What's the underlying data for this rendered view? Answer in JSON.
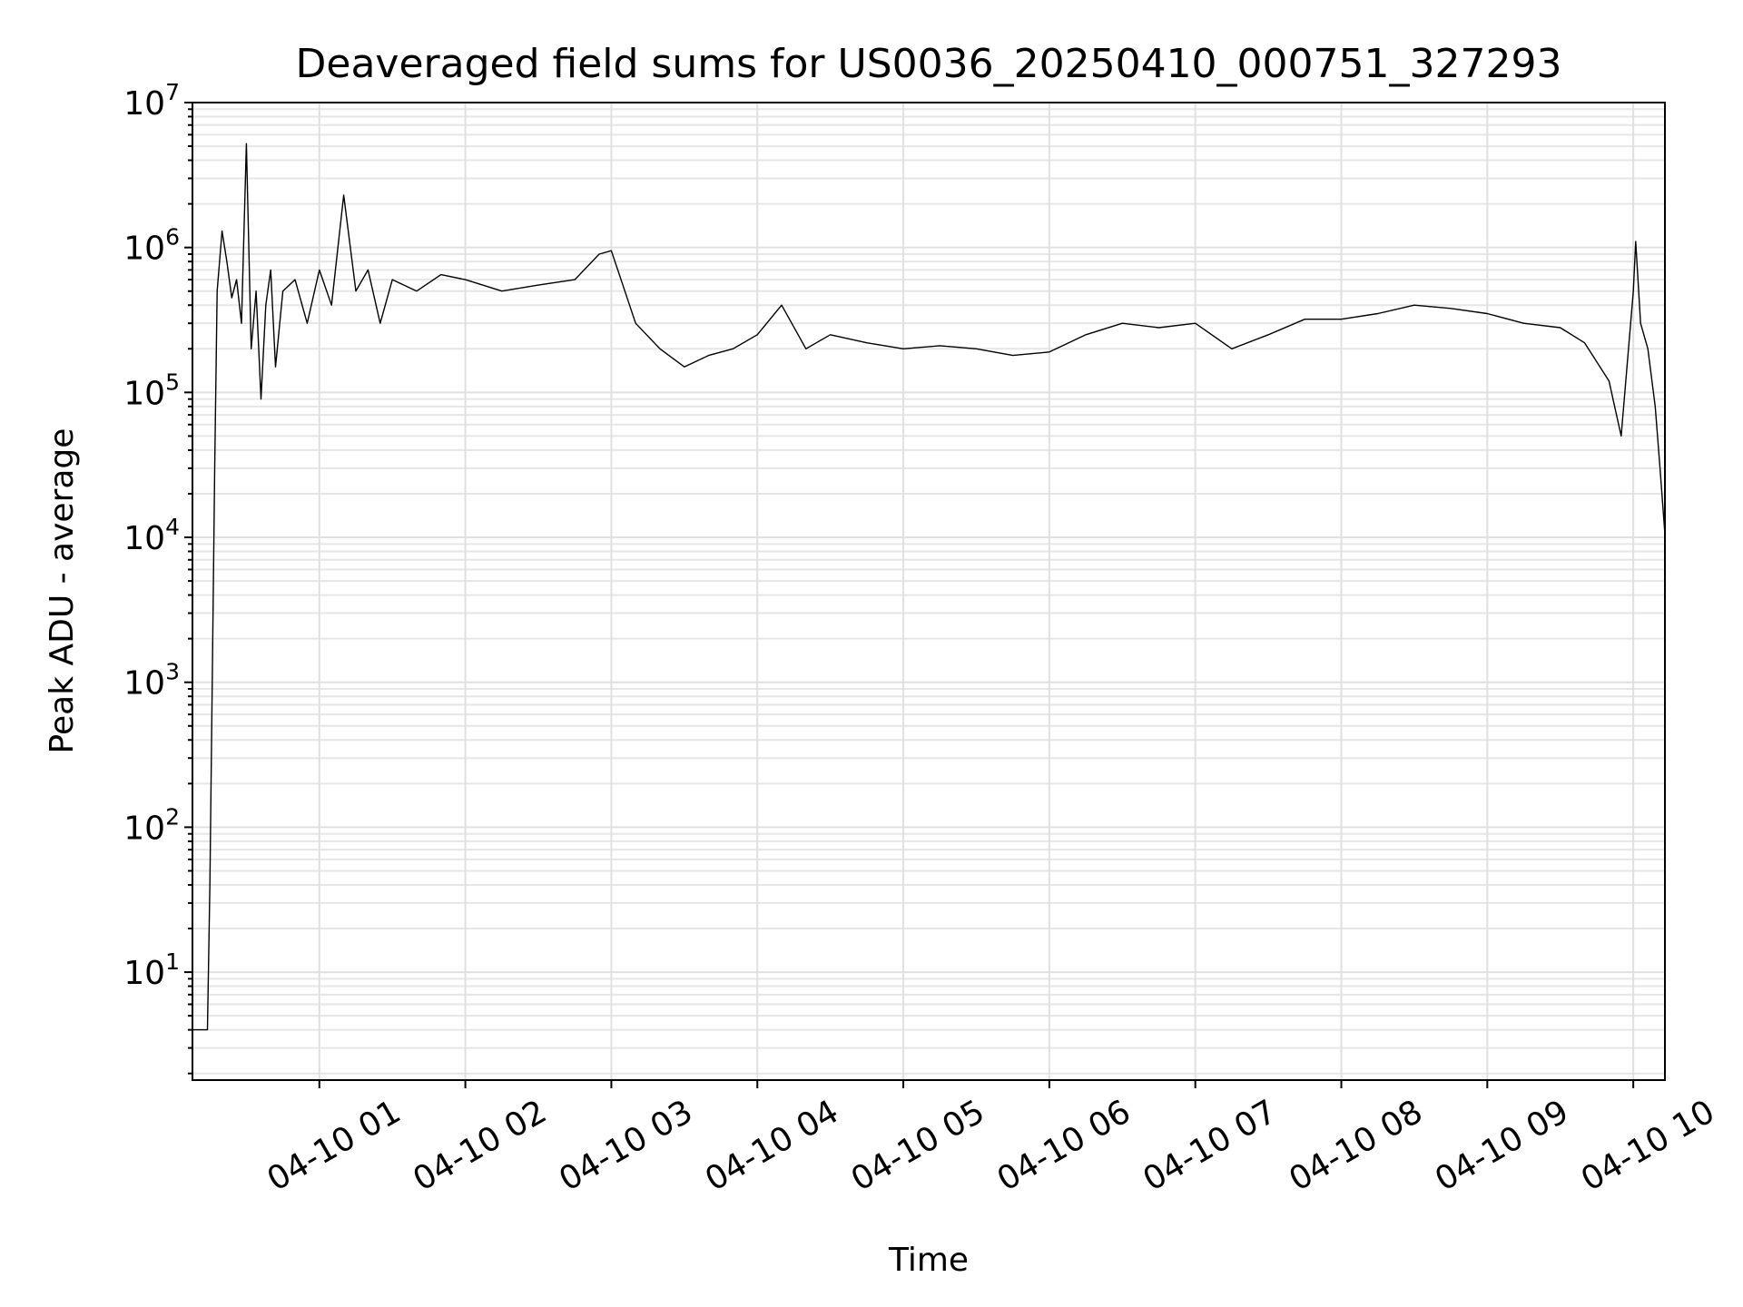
{
  "chart_data": {
    "type": "line",
    "title": "Deaveraged field sums for US0036_20250410_000751_327293",
    "xlabel": "Time",
    "ylabel": "Peak ADU - average",
    "yscale": "log",
    "ylim": [
      1.8,
      10000000
    ],
    "xlim": [
      "2025-04-10T00:07:51",
      "2025-04-10T10:13:00"
    ],
    "grid": "on, major and minor",
    "legend": "none",
    "series_color": "#000000",
    "y_ticks": [
      {
        "base": "10",
        "exp": "1",
        "value": 10
      },
      {
        "base": "10",
        "exp": "2",
        "value": 100
      },
      {
        "base": "10",
        "exp": "3",
        "value": 1000
      },
      {
        "base": "10",
        "exp": "4",
        "value": 10000
      },
      {
        "base": "10",
        "exp": "5",
        "value": 100000
      },
      {
        "base": "10",
        "exp": "6",
        "value": 1000000
      },
      {
        "base": "10",
        "exp": "7",
        "value": 10000000
      }
    ],
    "x_ticks": [
      {
        "label": "04-10 01",
        "value": "2025-04-10T01:00:00"
      },
      {
        "label": "04-10 02",
        "value": "2025-04-10T02:00:00"
      },
      {
        "label": "04-10 03",
        "value": "2025-04-10T03:00:00"
      },
      {
        "label": "04-10 04",
        "value": "2025-04-10T04:00:00"
      },
      {
        "label": "04-10 05",
        "value": "2025-04-10T05:00:00"
      },
      {
        "label": "04-10 06",
        "value": "2025-04-10T06:00:00"
      },
      {
        "label": "04-10 07",
        "value": "2025-04-10T07:00:00"
      },
      {
        "label": "04-10 08",
        "value": "2025-04-10T08:00:00"
      },
      {
        "label": "04-10 09",
        "value": "2025-04-10T09:00:00"
      },
      {
        "label": "04-10 10",
        "value": "2025-04-10T10:00:00"
      }
    ],
    "series": [
      {
        "x": [
          "2025-04-10T00:07:51",
          "2025-04-10T00:10:00",
          "2025-04-10T00:11:00",
          "2025-04-10T00:12:00",
          "2025-04-10T00:13:00",
          "2025-04-10T00:14:00",
          "2025-04-10T00:15:00",
          "2025-04-10T00:16:00",
          "2025-04-10T00:17:00",
          "2025-04-10T00:18:00",
          "2025-04-10T00:20:00",
          "2025-04-10T00:22:00",
          "2025-04-10T00:24:00",
          "2025-04-10T00:26:00",
          "2025-04-10T00:28:00",
          "2025-04-10T00:30:00",
          "2025-04-10T00:32:00",
          "2025-04-10T00:34:00",
          "2025-04-10T00:36:00",
          "2025-04-10T00:38:00",
          "2025-04-10T00:40:00",
          "2025-04-10T00:42:00",
          "2025-04-10T00:45:00",
          "2025-04-10T00:50:00",
          "2025-04-10T00:55:00",
          "2025-04-10T01:00:00",
          "2025-04-10T01:05:00",
          "2025-04-10T01:10:00",
          "2025-04-10T01:15:00",
          "2025-04-10T01:20:00",
          "2025-04-10T01:25:00",
          "2025-04-10T01:30:00",
          "2025-04-10T01:40:00",
          "2025-04-10T01:50:00",
          "2025-04-10T02:00:00",
          "2025-04-10T02:15:00",
          "2025-04-10T02:30:00",
          "2025-04-10T02:45:00",
          "2025-04-10T02:55:00",
          "2025-04-10T03:00:00",
          "2025-04-10T03:10:00",
          "2025-04-10T03:20:00",
          "2025-04-10T03:30:00",
          "2025-04-10T03:40:00",
          "2025-04-10T03:50:00",
          "2025-04-10T04:00:00",
          "2025-04-10T04:10:00",
          "2025-04-10T04:20:00",
          "2025-04-10T04:30:00",
          "2025-04-10T04:45:00",
          "2025-04-10T05:00:00",
          "2025-04-10T05:15:00",
          "2025-04-10T05:30:00",
          "2025-04-10T05:45:00",
          "2025-04-10T06:00:00",
          "2025-04-10T06:15:00",
          "2025-04-10T06:30:00",
          "2025-04-10T06:45:00",
          "2025-04-10T07:00:00",
          "2025-04-10T07:15:00",
          "2025-04-10T07:30:00",
          "2025-04-10T07:45:00",
          "2025-04-10T08:00:00",
          "2025-04-10T08:15:00",
          "2025-04-10T08:30:00",
          "2025-04-10T08:45:00",
          "2025-04-10T09:00:00",
          "2025-04-10T09:15:00",
          "2025-04-10T09:30:00",
          "2025-04-10T09:40:00",
          "2025-04-10T09:50:00",
          "2025-04-10T09:55:00",
          "2025-04-10T10:00:00",
          "2025-04-10T10:01:00",
          "2025-04-10T10:03:00",
          "2025-04-10T10:06:00",
          "2025-04-10T10:09:00",
          "2025-04-10T10:11:00",
          "2025-04-10T10:13:00"
        ],
        "y": [
          4,
          4,
          4,
          4,
          4,
          4,
          40,
          1000,
          30000,
          500000,
          1300000,
          800000,
          450000,
          600000,
          300000,
          5200000,
          200000,
          500000,
          90000,
          400000,
          700000,
          150000,
          500000,
          600000,
          300000,
          700000,
          400000,
          2300000,
          500000,
          700000,
          300000,
          600000,
          500000,
          650000,
          600000,
          500000,
          550000,
          600000,
          900000,
          950000,
          300000,
          200000,
          150000,
          180000,
          200000,
          250000,
          400000,
          200000,
          250000,
          220000,
          200000,
          210000,
          200000,
          180000,
          190000,
          250000,
          300000,
          280000,
          300000,
          200000,
          250000,
          320000,
          320000,
          350000,
          400000,
          380000,
          350000,
          300000,
          280000,
          220000,
          120000,
          50000,
          500000,
          1100000,
          300000,
          200000,
          80000,
          30000,
          10500
        ]
      }
    ]
  }
}
